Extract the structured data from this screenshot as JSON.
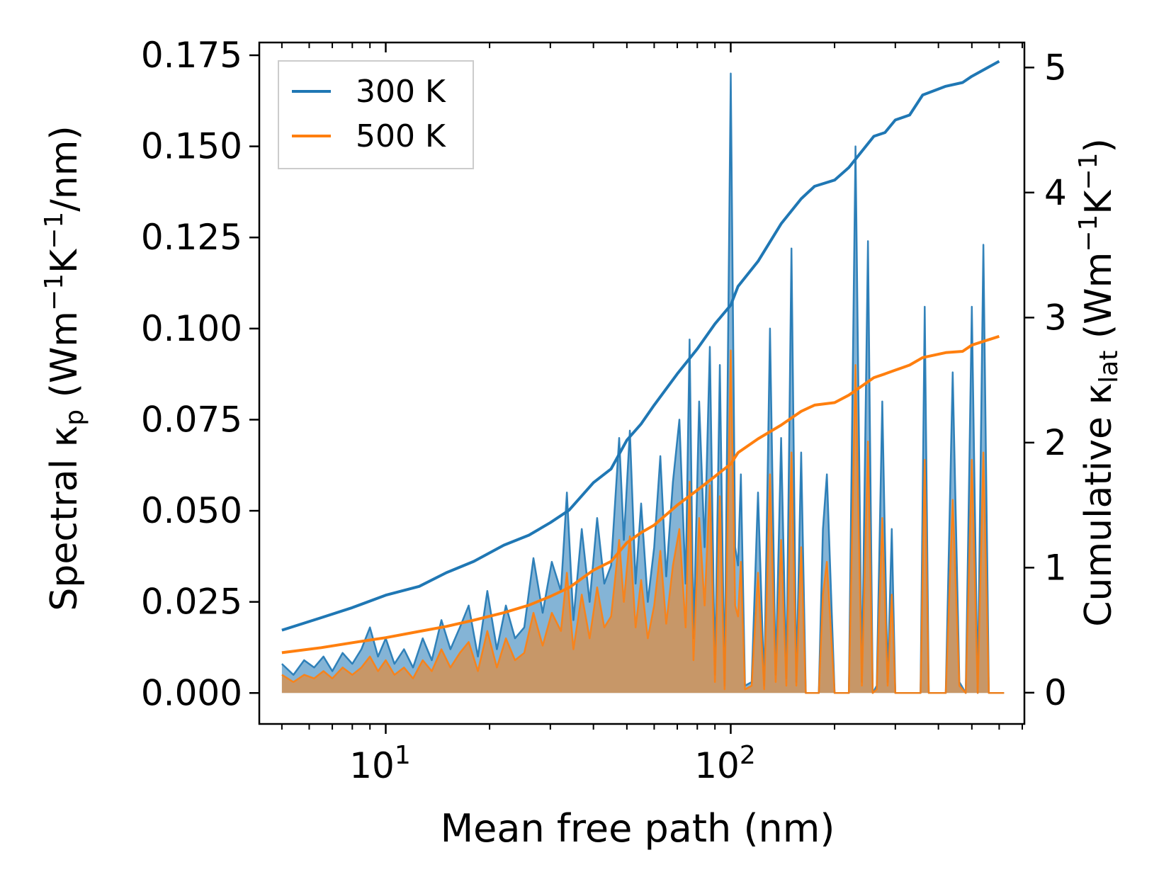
{
  "chart_data": {
    "type": "line",
    "title": "",
    "xlabel": "Mean free path (nm)",
    "xscale": "log",
    "xlim": [
      4.3,
      710
    ],
    "x_ticks": [
      {
        "value": 10,
        "base": "10",
        "exp": "1"
      },
      {
        "value": 100,
        "base": "10",
        "exp": "2"
      }
    ],
    "y_left": {
      "label_parts": [
        "Spectral κ",
        "p",
        " (Wm",
        "−1",
        "K",
        "−1",
        "/nm)"
      ],
      "ylim": [
        -0.0085,
        0.1785
      ],
      "ticks": [
        0.0,
        0.025,
        0.05,
        0.075,
        0.1,
        0.125,
        0.15,
        0.175
      ],
      "tick_labels": [
        "0.000",
        "0.025",
        "0.050",
        "0.075",
        "0.100",
        "0.125",
        "0.150",
        "0.175"
      ]
    },
    "y_right": {
      "label_parts": [
        "Cumulative κ",
        "lat",
        " (Wm",
        "−1",
        "K",
        "−1",
        ")"
      ],
      "ylim": [
        -0.25,
        5.2
      ],
      "ticks": [
        0,
        1,
        2,
        3,
        4,
        5
      ],
      "tick_labels": [
        "0",
        "1",
        "2",
        "3",
        "4",
        "5"
      ]
    },
    "legend": {
      "position": "upper-left",
      "entries": [
        {
          "label": "300 K",
          "color": "#1f77b4"
        },
        {
          "label": "500 K",
          "color": "#ff7f0e"
        }
      ]
    },
    "series": [
      {
        "name": "300 K",
        "color": "#1f77b4",
        "axis": "right",
        "role": "cumulative",
        "x": [
          5.0,
          6.5,
          8.0,
          10.0,
          12.5,
          15,
          18,
          22,
          26,
          30,
          34,
          40,
          45,
          50,
          55,
          60,
          70,
          80,
          90,
          100,
          105,
          120,
          140,
          160,
          175,
          200,
          220,
          260,
          280,
          300,
          330,
          360,
          420,
          470,
          500,
          600
        ],
        "values": [
          0.5,
          0.6,
          0.68,
          0.78,
          0.85,
          0.96,
          1.05,
          1.18,
          1.26,
          1.36,
          1.46,
          1.68,
          1.79,
          2.02,
          2.15,
          2.3,
          2.55,
          2.75,
          2.95,
          3.1,
          3.25,
          3.45,
          3.75,
          3.95,
          4.05,
          4.1,
          4.2,
          4.45,
          4.48,
          4.58,
          4.62,
          4.78,
          4.85,
          4.88,
          4.93,
          5.05
        ]
      },
      {
        "name": "500 K",
        "color": "#ff7f0e",
        "axis": "right",
        "role": "cumulative",
        "x": [
          5.0,
          6.5,
          8.0,
          10.0,
          12.5,
          15,
          18,
          22,
          26,
          30,
          34,
          40,
          45,
          50,
          55,
          60,
          70,
          80,
          90,
          100,
          105,
          120,
          140,
          160,
          175,
          200,
          220,
          260,
          280,
          300,
          330,
          360,
          420,
          470,
          500,
          600
        ],
        "values": [
          0.32,
          0.36,
          0.4,
          0.44,
          0.49,
          0.53,
          0.58,
          0.64,
          0.7,
          0.77,
          0.84,
          0.98,
          1.05,
          1.2,
          1.28,
          1.34,
          1.5,
          1.62,
          1.73,
          1.83,
          1.92,
          2.03,
          2.14,
          2.25,
          2.3,
          2.32,
          2.38,
          2.52,
          2.55,
          2.58,
          2.62,
          2.68,
          2.72,
          2.73,
          2.78,
          2.85
        ]
      },
      {
        "name": "300 K spectral",
        "color": "#1f77b4",
        "axis": "left",
        "role": "spectral-filled",
        "x": [
          5.0,
          5.4,
          5.8,
          6.2,
          6.6,
          7.0,
          7.5,
          8.0,
          8.5,
          9.0,
          9.5,
          10.0,
          10.6,
          11.3,
          12.0,
          12.8,
          13.6,
          14.5,
          15.4,
          16.4,
          17.4,
          18.5,
          19.7,
          21.0,
          22.3,
          23.7,
          25.2,
          26.8,
          28.5,
          30.3,
          32.2,
          33.5,
          35.0,
          37.0,
          39.0,
          41.0,
          43.0,
          45.0,
          47.5,
          49.0,
          51.0,
          53.0,
          55.0,
          57.5,
          60.0,
          62.5,
          65.0,
          68.0,
          71.0,
          74.0,
          76.0,
          78.0,
          81.0,
          84.0,
          87.0,
          90.0,
          93.0,
          96.0,
          100.0,
          103.0,
          105.0,
          107.0,
          110.0,
          115.0,
          120.0,
          125.0,
          130.0,
          135.0,
          140.0,
          145.0,
          150.0,
          155.0,
          160.0,
          165.0,
          170.0,
          175.0,
          180.0,
          185.0,
          190.0,
          200.0,
          210.0,
          220.0,
          230.0,
          240.0,
          250.0,
          258.0,
          265.0,
          275.0,
          285.0,
          293.0,
          300.0,
          310.0,
          320.0,
          340.0,
          355.0,
          365.0,
          375.0,
          390.0,
          400.0,
          420.0,
          440.0,
          460.0,
          480.0,
          500.0,
          520.0,
          540.0,
          560.0,
          580.0,
          600.0,
          620.0
        ],
        "values": [
          0.008,
          0.005,
          0.009,
          0.007,
          0.01,
          0.006,
          0.011,
          0.008,
          0.012,
          0.018,
          0.01,
          0.015,
          0.008,
          0.012,
          0.007,
          0.015,
          0.009,
          0.02,
          0.012,
          0.018,
          0.024,
          0.01,
          0.028,
          0.012,
          0.024,
          0.015,
          0.018,
          0.037,
          0.022,
          0.036,
          0.028,
          0.055,
          0.02,
          0.045,
          0.025,
          0.048,
          0.03,
          0.035,
          0.07,
          0.042,
          0.072,
          0.03,
          0.052,
          0.025,
          0.04,
          0.065,
          0.032,
          0.058,
          0.075,
          0.03,
          0.097,
          0.015,
          0.08,
          0.04,
          0.095,
          0.005,
          0.09,
          0.002,
          0.17,
          0.04,
          0.035,
          0.06,
          0.002,
          0.003,
          0.055,
          0.002,
          0.1,
          0.005,
          0.07,
          0.004,
          0.122,
          0.003,
          0.066,
          0.0,
          0.0,
          0.0,
          0.0,
          0.045,
          0.06,
          0.0,
          0.0,
          0.0,
          0.15,
          0.003,
          0.124,
          0.0,
          0.002,
          0.08,
          0.003,
          0.045,
          0.0,
          0.0,
          0.0,
          0.0,
          0.0,
          0.106,
          0.0,
          0.0,
          0.0,
          0.0,
          0.088,
          0.003,
          0.0,
          0.106,
          0.0,
          0.123,
          0.0,
          0.0,
          0.0,
          0.0
        ]
      },
      {
        "name": "500 K spectral",
        "color": "#ff7f0e",
        "axis": "left",
        "role": "spectral-filled",
        "x": [
          5.0,
          5.4,
          5.8,
          6.2,
          6.6,
          7.0,
          7.5,
          8.0,
          8.5,
          9.0,
          9.5,
          10.0,
          10.6,
          11.3,
          12.0,
          12.8,
          13.6,
          14.5,
          15.4,
          16.4,
          17.4,
          18.5,
          19.7,
          21.0,
          22.3,
          23.7,
          25.2,
          26.8,
          28.5,
          30.3,
          32.2,
          33.5,
          35.0,
          37.0,
          39.0,
          41.0,
          43.0,
          45.0,
          47.5,
          49.0,
          51.0,
          53.0,
          55.0,
          57.5,
          60.0,
          62.5,
          65.0,
          68.0,
          71.0,
          74.0,
          76.0,
          78.0,
          81.0,
          84.0,
          87.0,
          90.0,
          93.0,
          96.0,
          100.0,
          103.0,
          105.0,
          107.0,
          110.0,
          115.0,
          120.0,
          125.0,
          130.0,
          135.0,
          140.0,
          145.0,
          150.0,
          155.0,
          160.0,
          165.0,
          170.0,
          175.0,
          180.0,
          185.0,
          190.0,
          200.0,
          210.0,
          220.0,
          230.0,
          240.0,
          250.0,
          258.0,
          265.0,
          275.0,
          285.0,
          293.0,
          300.0,
          310.0,
          320.0,
          340.0,
          355.0,
          365.0,
          375.0,
          390.0,
          400.0,
          420.0,
          440.0,
          460.0,
          480.0,
          500.0,
          520.0,
          540.0,
          560.0,
          580.0,
          600.0,
          620.0
        ],
        "values": [
          0.005,
          0.003,
          0.005,
          0.004,
          0.006,
          0.004,
          0.007,
          0.005,
          0.007,
          0.01,
          0.006,
          0.009,
          0.005,
          0.007,
          0.004,
          0.009,
          0.006,
          0.012,
          0.007,
          0.011,
          0.014,
          0.006,
          0.017,
          0.007,
          0.015,
          0.009,
          0.011,
          0.022,
          0.013,
          0.022,
          0.017,
          0.033,
          0.012,
          0.027,
          0.015,
          0.029,
          0.018,
          0.021,
          0.042,
          0.025,
          0.043,
          0.018,
          0.031,
          0.015,
          0.024,
          0.039,
          0.019,
          0.035,
          0.045,
          0.018,
          0.058,
          0.009,
          0.048,
          0.024,
          0.057,
          0.003,
          0.054,
          0.001,
          0.094,
          0.024,
          0.021,
          0.036,
          0.001,
          0.002,
          0.033,
          0.001,
          0.06,
          0.003,
          0.042,
          0.002,
          0.066,
          0.002,
          0.04,
          0.0,
          0.0,
          0.0,
          0.0,
          0.027,
          0.036,
          0.0,
          0.0,
          0.0,
          0.09,
          0.002,
          0.069,
          0.0,
          0.001,
          0.048,
          0.002,
          0.027,
          0.0,
          0.0,
          0.0,
          0.0,
          0.0,
          0.064,
          0.0,
          0.0,
          0.0,
          0.0,
          0.053,
          0.002,
          0.0,
          0.064,
          0.0,
          0.066,
          0.0,
          0.0,
          0.0,
          0.0
        ]
      }
    ]
  }
}
